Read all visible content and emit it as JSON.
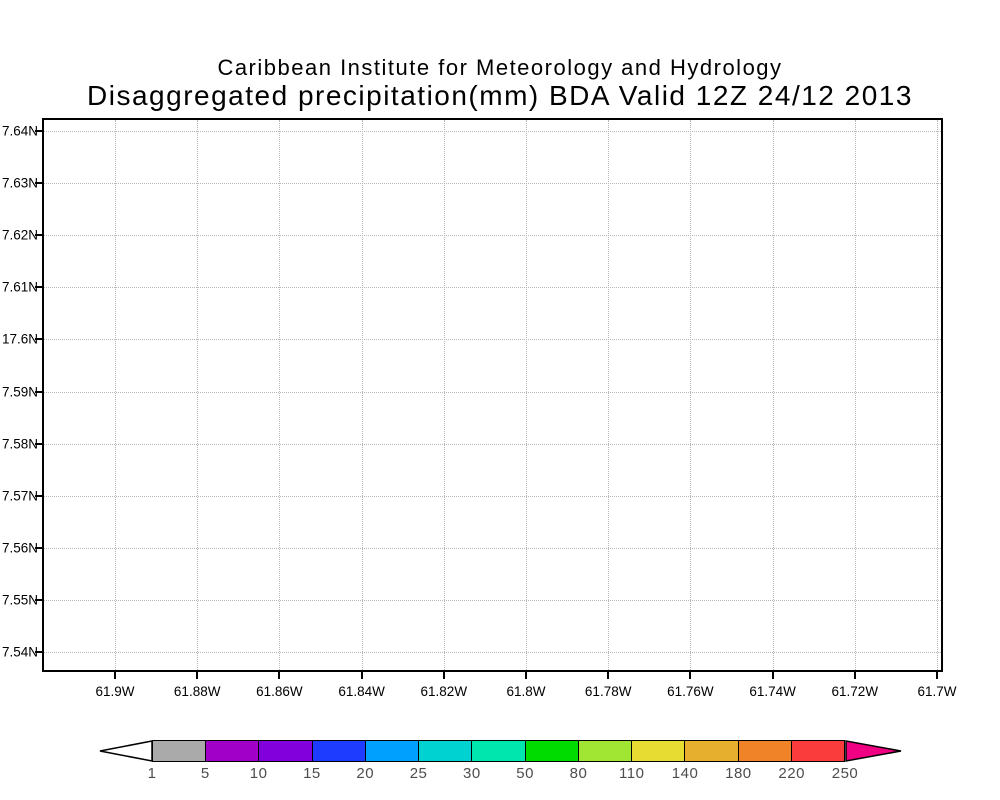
{
  "header": {
    "line1": "Caribbean Institute for Meteorology and Hydrology",
    "line2": "Disaggregated precipitation(mm) BDA Valid 12Z 24/12 2013"
  },
  "chart_data": {
    "type": "map",
    "title": "Caribbean Institute for Meteorology and Hydrology",
    "subtitle": "Disaggregated precipitation(mm) BDA Valid 12Z 24/12 2013",
    "plot_content": "empty map panel - no precipitation shading plotted",
    "grid": "dotted",
    "y_axis": {
      "tick_labels": [
        "7.64N",
        "7.63N",
        "7.62N",
        "7.61N",
        "17.6N",
        "7.59N",
        "7.58N",
        "7.57N",
        "7.56N",
        "7.55N",
        "7.54N"
      ]
    },
    "x_axis": {
      "tick_labels": [
        "61.9W",
        "61.88W",
        "61.86W",
        "61.84W",
        "61.82W",
        "61.8W",
        "61.78W",
        "61.76W",
        "61.74W",
        "61.72W",
        "61.7W"
      ]
    },
    "colorbar": {
      "levels": [
        1,
        5,
        10,
        15,
        20,
        25,
        30,
        50,
        80,
        110,
        140,
        180,
        220,
        250
      ],
      "segment_colors": [
        "#aaaaaa",
        "#a000c8",
        "#8200dc",
        "#1e3cff",
        "#00a0ff",
        "#00d2d2",
        "#00e6af",
        "#00dc00",
        "#a0e632",
        "#e6dc32",
        "#e6af2d",
        "#f08228",
        "#fa3c3c"
      ],
      "below_min_color": "#ffffff",
      "above_max_color": "#f00082",
      "outline_color": "#000000"
    }
  }
}
